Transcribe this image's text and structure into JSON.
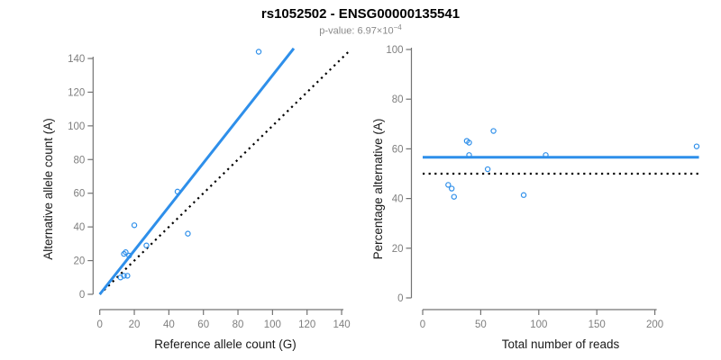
{
  "header": {
    "title": "rs1052502 - ENSG00000135541",
    "pvalue_prefix": "p-value: ",
    "pvalue_mantissa": "6.97×10",
    "pvalue_exponent": "−4"
  },
  "colors": {
    "accent_blue": "#2e8fea",
    "dotted_line": "#000000",
    "tick_label": "#7f7f7f",
    "axis_line": "#737373",
    "axis_title": "#1a1a1a",
    "subtitle_gray": "#8a8a8a"
  },
  "chart_data": [
    {
      "type": "scatter",
      "name": "allele-count-scatter",
      "xlabel": "Reference allele count (G)",
      "ylabel": "Alternative allele count (A)",
      "xlim": [
        0,
        145
      ],
      "ylim": [
        0,
        146
      ],
      "xticks": [
        0,
        20,
        40,
        60,
        80,
        100,
        120,
        140
      ],
      "yticks": [
        0,
        20,
        40,
        60,
        80,
        100,
        120,
        140
      ],
      "grid": false,
      "points": [
        [
          92,
          144
        ],
        [
          45,
          61
        ],
        [
          20,
          41
        ],
        [
          51,
          36
        ],
        [
          27,
          29
        ],
        [
          14,
          24
        ],
        [
          15,
          25
        ],
        [
          17,
          23
        ],
        [
          12,
          10
        ],
        [
          14,
          11
        ],
        [
          16,
          11
        ]
      ],
      "lines": [
        {
          "name": "identity-line",
          "intercept": 0,
          "slope": 1.0,
          "style": "dotted",
          "color": "dotted_line"
        },
        {
          "name": "fit-line",
          "intercept": 0,
          "slope": 1.3,
          "style": "solid",
          "color": "accent_blue"
        }
      ]
    },
    {
      "type": "scatter",
      "name": "percentage-vs-reads-scatter",
      "xlabel": "Total number of reads",
      "ylabel": "Percentage alternative (A)",
      "xlim": [
        0,
        238
      ],
      "ylim": [
        0,
        100
      ],
      "xticks": [
        0,
        50,
        100,
        150,
        200
      ],
      "yticks": [
        0,
        20,
        40,
        60,
        80,
        100
      ],
      "grid": false,
      "points": [
        [
          236,
          61.0
        ],
        [
          106,
          57.5
        ],
        [
          61,
          67.2
        ],
        [
          87,
          41.4
        ],
        [
          56,
          51.8
        ],
        [
          38,
          63.2
        ],
        [
          40,
          62.5
        ],
        [
          40,
          57.5
        ],
        [
          22,
          45.5
        ],
        [
          25,
          44.0
        ],
        [
          27,
          40.7
        ]
      ],
      "lines": [
        {
          "name": "null-line",
          "intercept": 50,
          "slope": 0,
          "style": "dotted",
          "color": "dotted_line"
        },
        {
          "name": "mean-line",
          "intercept": 56.6,
          "slope": 0,
          "style": "solid",
          "color": "accent_blue"
        }
      ]
    }
  ]
}
